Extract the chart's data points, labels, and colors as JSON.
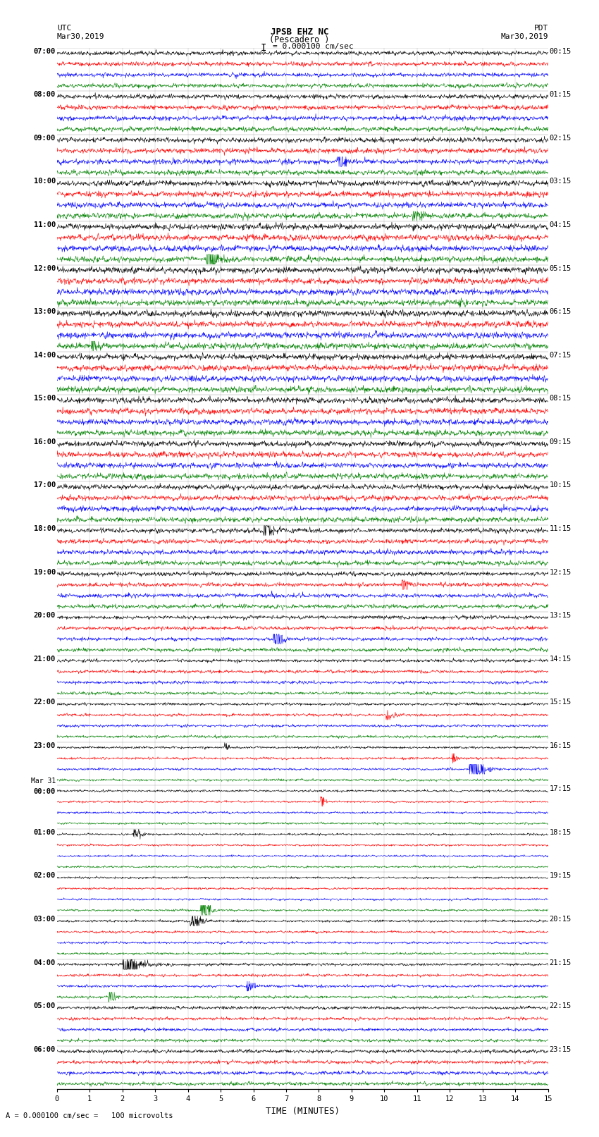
{
  "title_line1": "JPSB EHZ NC",
  "title_line2": "(Pescadero )",
  "scale_label": "= 0.000100 cm/sec",
  "bottom_label": "= 0.000100 cm/sec =   100 microvolts",
  "utc_label": "UTC",
  "pdt_label": "PDT",
  "date_left": "Mar30,2019",
  "date_right": "Mar30,2019",
  "xlabel": "TIME (MINUTES)",
  "trace_colors": [
    "black",
    "red",
    "blue",
    "green"
  ],
  "bg_color": "white",
  "left_times": [
    "07:00",
    "08:00",
    "09:00",
    "10:00",
    "11:00",
    "12:00",
    "13:00",
    "14:00",
    "15:00",
    "16:00",
    "17:00",
    "18:00",
    "19:00",
    "20:00",
    "21:00",
    "22:00",
    "23:00",
    "Mar 31\n00:00",
    "01:00",
    "02:00",
    "03:00",
    "04:00",
    "05:00",
    "06:00"
  ],
  "right_times": [
    "00:15",
    "01:15",
    "02:15",
    "03:15",
    "04:15",
    "05:15",
    "06:15",
    "07:15",
    "08:15",
    "09:15",
    "10:15",
    "11:15",
    "12:15",
    "13:15",
    "14:15",
    "15:15",
    "16:15",
    "17:15",
    "18:15",
    "19:15",
    "20:15",
    "21:15",
    "22:15",
    "23:15"
  ],
  "n_hour_rows": 24,
  "traces_per_hour": 4,
  "minutes_per_row": 15,
  "figsize": [
    8.5,
    16.13
  ],
  "dpi": 100,
  "lw": 0.4
}
